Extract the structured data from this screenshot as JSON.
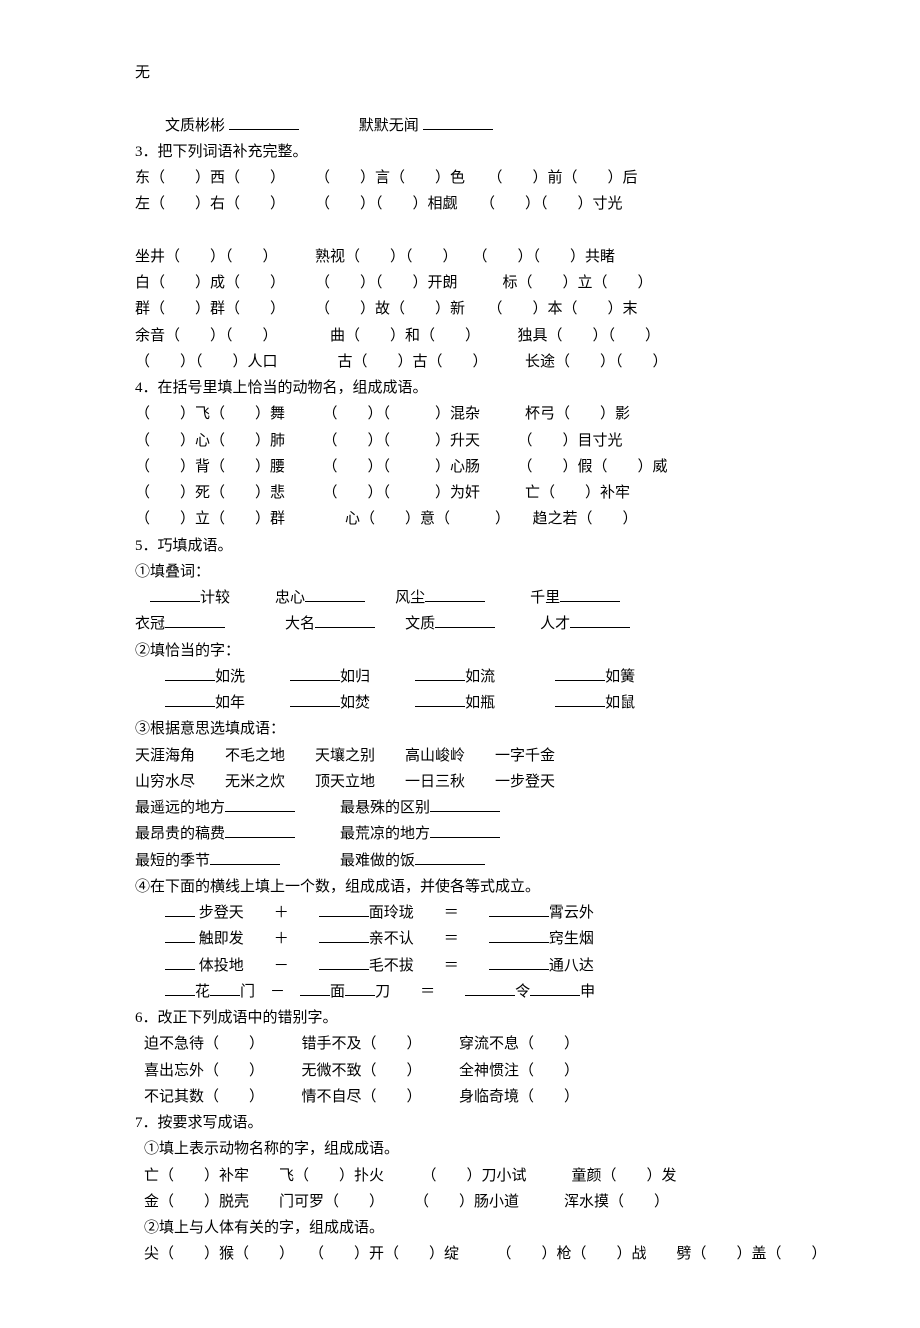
{
  "header_char": "无",
  "lines": {
    "l1a": "文质彬彬",
    "l1b": "默默无闻",
    "q3": "3．把下列词语补充完整。",
    "q3_1": "东（　　）西（　　）　　　（　　）言（　　）色　　（　　）前（　　）后",
    "q3_2": "左（　　）右（　　）　　　（　　）（　　）相觑　　（　　）（　　）寸光",
    "q3_3": "坐井（　　）（　　）　　　熟视（　　）（　　）　　（　　）（　　）共睹",
    "q3_4": "白（　　）成（　　）　　　（　　）（　　）开朗　　　标（　　）立（　　）",
    "q3_5": "群（　　）群（　　）　　　（　　）故（　　）新　　（　　）本（　　）末",
    "q3_6": "余音（　　）（　　）　　　　曲（　　）和（　　）　　　独具（　　）（　　）",
    "q3_7": "（　　）（　　）人口　　　　古（　　）古（　　）　　　长途（　　）（　　）",
    "q4": "4．在括号里填上恰当的动物名，组成成语。",
    "q4_1": "（　　）飞（　　）舞　　　（　　）（　　　）混杂　　　杯弓（　　）影",
    "q4_2": "（　　）心（　　）肺　　　（　　）（　　　）升天　　　（　　）目寸光",
    "q4_3": "（　　）背（　　）腰　　　（　　）（　　　）心肠　　　（　　）假（　　）威",
    "q4_4": "（　　）死（　　）悲　　　（　　）（　　　）为奸　　　亡（　　）补牢",
    "q4_5": "（　　）立（　　）群　　　　心（　　）意（　　　）　　趋之若（　　）",
    "q5": "5．巧填成语。",
    "q5_1": "①填叠词：",
    "q5_1a_1": "计较",
    "q5_1a_2": "忠心",
    "q5_1a_3": "风尘",
    "q5_1a_4": "千里",
    "q5_1b_1": "衣冠",
    "q5_1b_2": "大名",
    "q5_1b_3": "文质",
    "q5_1b_4": "人才",
    "q5_2": "②填恰当的字：",
    "q5_2a": "如洗",
    "q5_2b": "如归",
    "q5_2c": "如流",
    "q5_2d": "如簧",
    "q5_2e": "如年",
    "q5_2f": "如焚",
    "q5_2g": "如瓶",
    "q5_2h": "如鼠",
    "q5_3": "③根据意思选填成语：",
    "q5_3a": "天涯海角　　不毛之地　　天壤之别　　高山峻岭　　一字千金",
    "q5_3b": "山穷水尽　　无米之炊　　顶天立地　　一日三秋　　一步登天",
    "q5_3c_1": "最遥远的地方",
    "q5_3c_2": "最悬殊的区别",
    "q5_3d_1": "最昂贵的稿费",
    "q5_3d_2": "最荒凉的地方",
    "q5_3e_1": "最短的季节",
    "q5_3e_2": "最难做的饭",
    "q5_4": "④在下面的横线上填上一个数，组成成语，并使各等式成立。",
    "q5_4a_1": "步登天",
    "q5_4a_2": "面玲珑",
    "q5_4a_3": "霄云外",
    "q5_4b_1": "触即发",
    "q5_4b_2": "亲不认",
    "q5_4b_3": "窍生烟",
    "q5_4c_1": "体投地",
    "q5_4c_2": "毛不拔",
    "q5_4c_3": "通八达",
    "q5_4d_1": "花",
    "q5_4d_2": "门",
    "q5_4d_3": "面",
    "q5_4d_4": "刀",
    "q5_4d_5": "令",
    "q5_4d_6": "申",
    "q6": "6．改正下列成语中的错别字。",
    "q6_1": "迫不急待（　　）　　　错手不及（　　）　　　穿流不息（　　）",
    "q6_2": "喜出忘外（　　）　　　无微不致（　　）　　　全神惯注（　　）",
    "q6_3": "不记其数（　　）　　　情不自尽（　　）　　　身临奇境（　　）",
    "q7": "7．按要求写成语。",
    "q7_1": "①填上表示动物名称的字，组成成语。",
    "q7_1a": "亡（　　）补牢　　飞（　　）扑火　　　（　　）刀小试　　　童颜（　　）发",
    "q7_1b": "金（　　）脱壳　　门可罗（　　）　　　（　　）肠小道　　　浑水摸（　　）",
    "q7_2": "②填上与人体有关的字，组成成语。",
    "q7_2a": "尖（　　）猴（　　）　　（　　）开（　　）绽　　　（　　）枪（　　）战　　劈（　　）盖（　　）"
  }
}
